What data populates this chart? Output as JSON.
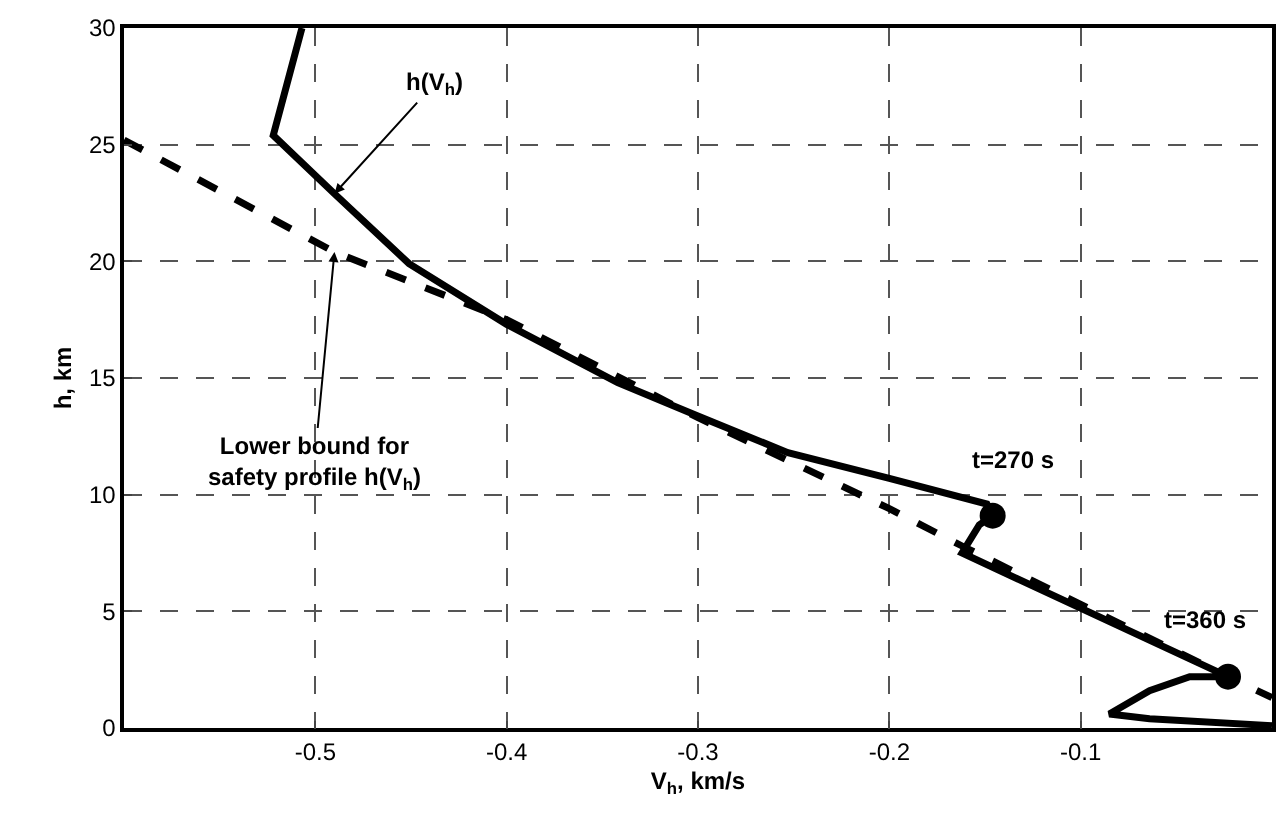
{
  "chart_data": {
    "type": "line",
    "xlabel": "V$_{h}$, km/s",
    "ylabel": "h, km",
    "xlim": [
      -0.6,
      0
    ],
    "ylim": [
      0,
      30
    ],
    "xticks": [
      -0.5,
      -0.4,
      -0.3,
      -0.2,
      -0.1
    ],
    "yticks": [
      0,
      5,
      10,
      15,
      20,
      25,
      30
    ],
    "grid": true,
    "series": [
      {
        "color": "#000000",
        "line_style": "solid",
        "marker": "none",
        "x": [
          -0.507,
          -0.522,
          -0.49,
          -0.451,
          -0.4,
          -0.342,
          -0.301,
          -0.253,
          -0.2,
          -0.149,
          -0.146,
          -0.153,
          -0.162,
          -0.023,
          -0.043,
          -0.064,
          -0.085,
          -0.064,
          0
        ],
        "values": [
          30,
          25.4,
          22.9,
          19.9,
          17.3,
          14.8,
          13.4,
          11.8,
          10.7,
          9.6,
          9.1,
          8.7,
          7.5,
          2.2,
          2.2,
          1.6,
          0.6,
          0.4,
          0.1
        ]
      },
      {
        "color": "#000000",
        "line_style": "dashed",
        "marker": "none",
        "x": [
          -0.6,
          -0.49,
          -0.4,
          -0.3,
          -0.2,
          -0.162,
          -0.1,
          -0.023,
          0
        ],
        "values": [
          25.2,
          20.4,
          17.5,
          13.3,
          9.4,
          7.8,
          5.3,
          2.2,
          1.3
        ]
      },
      {
        "type": "scatter",
        "color": "#000000",
        "marker": "circle",
        "x": [
          -0.146,
          -0.023
        ],
        "values": [
          9.1,
          2.2
        ]
      }
    ],
    "annotations": [
      {
        "text": "h(V$_{h}$)",
        "x": -0.49,
        "y": 22.9
      },
      {
        "text": "Lower bound for\nsafety profile h(V$_{h}$)",
        "x": -0.49,
        "y": 20.4
      },
      {
        "text": "t=270 s",
        "x": -0.146,
        "y": 9.1
      },
      {
        "text": "t=360 s",
        "x": -0.023,
        "y": 2.2
      }
    ]
  }
}
